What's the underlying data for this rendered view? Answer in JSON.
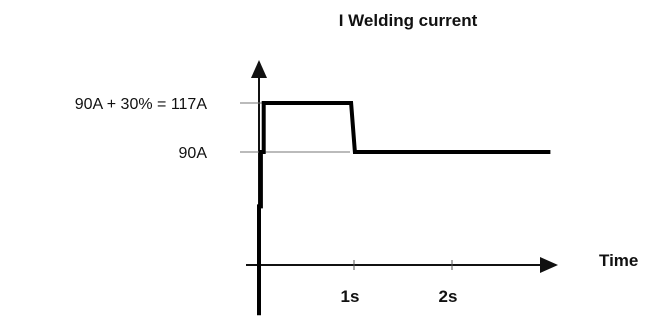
{
  "chart_data": {
    "type": "line",
    "title": "I Welding current",
    "xlabel": "Time",
    "ylabel": "",
    "xlim": [
      0,
      3
    ],
    "ylim": [
      0,
      117
    ],
    "x_ticks": [
      {
        "value": 1,
        "label": "1s"
      },
      {
        "value": 2,
        "label": "2s"
      }
    ],
    "y_ticks": [
      {
        "value": 117,
        "label": "90A + 30% = 117A"
      },
      {
        "value": 90,
        "label": "90A"
      }
    ],
    "series": [
      {
        "x": [
          0,
          0,
          0.02,
          0.02,
          0.05,
          0.05,
          0.98,
          1.02,
          3.1
        ],
        "y": [
          0,
          60,
          60,
          90,
          90,
          117,
          117,
          90,
          90
        ]
      }
    ],
    "grid": false,
    "legend": "none"
  }
}
